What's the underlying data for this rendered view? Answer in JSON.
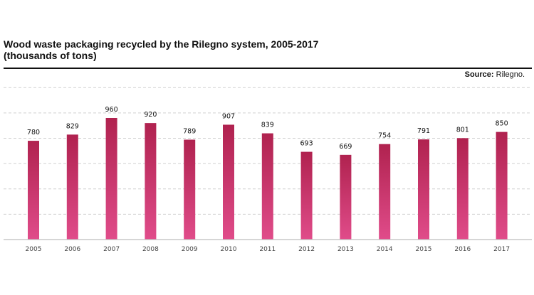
{
  "header": {
    "title_line1": "Wood waste packaging recycled by the Rilegno system, 2005-2017",
    "title_line2": "(thousands of tons)",
    "source_label": "Source:",
    "source_value": "Rilegno."
  },
  "colors": {
    "bar_top": "#b0224f",
    "bar_bottom": "#e04c8a"
  },
  "chart_data": {
    "type": "bar",
    "title": "Wood waste packaging recycled by the Rilegno system, 2005-2017 (thousands of tons)",
    "categories": [
      "2005",
      "2006",
      "2007",
      "2008",
      "2009",
      "2010",
      "2011",
      "2012",
      "2013",
      "2014",
      "2015",
      "2016",
      "2017"
    ],
    "values": [
      780,
      829,
      960,
      920,
      789,
      907,
      839,
      693,
      669,
      754,
      791,
      801,
      850
    ],
    "ylim": [
      0,
      1200
    ],
    "grid": true,
    "xlabel": "",
    "ylabel": ""
  }
}
